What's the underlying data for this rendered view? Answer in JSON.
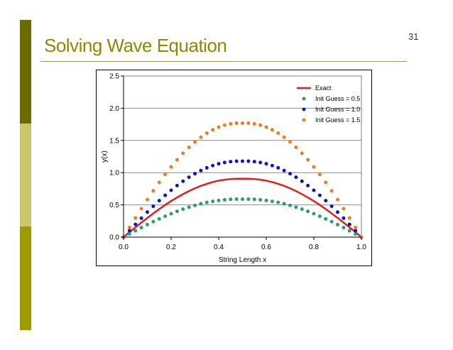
{
  "slide": {
    "title": "Solving Wave Equation",
    "number": "31",
    "accent_colors": [
      "#6b6b00",
      "#c8c86a",
      "#9c9c00"
    ]
  },
  "chart_data": {
    "type": "line",
    "title": "",
    "xlabel": "String Length x",
    "ylabel": "y(x)",
    "xlim": [
      0.0,
      1.0
    ],
    "ylim": [
      0.0,
      2.5
    ],
    "xticks": [
      "0.0",
      "0.2",
      "0.4",
      "0.6",
      "0.8",
      "1.0"
    ],
    "yticks": [
      "0.0",
      "0.5",
      "1.0",
      "1.5",
      "2.0",
      "2.5"
    ],
    "grid": "horizontal",
    "legend_position": "top-right",
    "x": [
      0.0,
      0.025,
      0.05,
      0.075,
      0.1,
      0.125,
      0.15,
      0.175,
      0.2,
      0.225,
      0.25,
      0.275,
      0.3,
      0.325,
      0.35,
      0.375,
      0.4,
      0.425,
      0.45,
      0.475,
      0.5,
      0.525,
      0.55,
      0.575,
      0.6,
      0.625,
      0.65,
      0.675,
      0.7,
      0.725,
      0.75,
      0.775,
      0.8,
      0.825,
      0.85,
      0.875,
      0.9,
      0.925,
      0.95,
      0.975,
      1.0
    ],
    "series": [
      {
        "name": "Exact",
        "style": "line",
        "color": "#e0201b",
        "values": [
          0.0,
          0.077,
          0.152,
          0.226,
          0.298,
          0.368,
          0.435,
          0.499,
          0.559,
          0.615,
          0.667,
          0.714,
          0.757,
          0.795,
          0.827,
          0.854,
          0.876,
          0.891,
          0.901,
          0.906,
          0.906,
          0.906,
          0.901,
          0.891,
          0.876,
          0.854,
          0.827,
          0.795,
          0.757,
          0.714,
          0.667,
          0.615,
          0.559,
          0.499,
          0.435,
          0.368,
          0.298,
          0.226,
          0.152,
          0.077,
          0.0
        ]
      },
      {
        "name": "Init Guess = 0.5",
        "style": "markers",
        "color": "#2e9b6b",
        "values": [
          0.0,
          0.05,
          0.099,
          0.147,
          0.194,
          0.24,
          0.283,
          0.324,
          0.363,
          0.4,
          0.434,
          0.464,
          0.492,
          0.517,
          0.538,
          0.555,
          0.569,
          0.579,
          0.586,
          0.589,
          0.589,
          0.589,
          0.586,
          0.579,
          0.569,
          0.555,
          0.538,
          0.517,
          0.492,
          0.464,
          0.434,
          0.4,
          0.363,
          0.324,
          0.283,
          0.24,
          0.194,
          0.147,
          0.099,
          0.05,
          0.0
        ]
      },
      {
        "name": "Init Guess = 1.0",
        "style": "markers",
        "color": "#1010c8",
        "values": [
          0.0,
          0.1,
          0.198,
          0.294,
          0.388,
          0.479,
          0.566,
          0.649,
          0.727,
          0.8,
          0.867,
          0.929,
          0.984,
          1.033,
          1.075,
          1.11,
          1.138,
          1.158,
          1.171,
          1.178,
          1.178,
          1.178,
          1.171,
          1.158,
          1.138,
          1.11,
          1.075,
          1.033,
          0.984,
          0.929,
          0.867,
          0.8,
          0.727,
          0.649,
          0.566,
          0.479,
          0.388,
          0.294,
          0.198,
          0.1,
          0.0
        ]
      },
      {
        "name": "Init Guess = 1.5",
        "style": "markers",
        "color": "#f07a20",
        "values": [
          0.0,
          0.15,
          0.297,
          0.441,
          0.582,
          0.719,
          0.849,
          0.973,
          1.09,
          1.2,
          1.301,
          1.393,
          1.476,
          1.55,
          1.613,
          1.665,
          1.707,
          1.737,
          1.757,
          1.767,
          1.767,
          1.767,
          1.757,
          1.737,
          1.707,
          1.665,
          1.613,
          1.55,
          1.476,
          1.393,
          1.301,
          1.2,
          1.09,
          0.973,
          0.849,
          0.719,
          0.582,
          0.441,
          0.297,
          0.15,
          0.0
        ]
      }
    ]
  }
}
